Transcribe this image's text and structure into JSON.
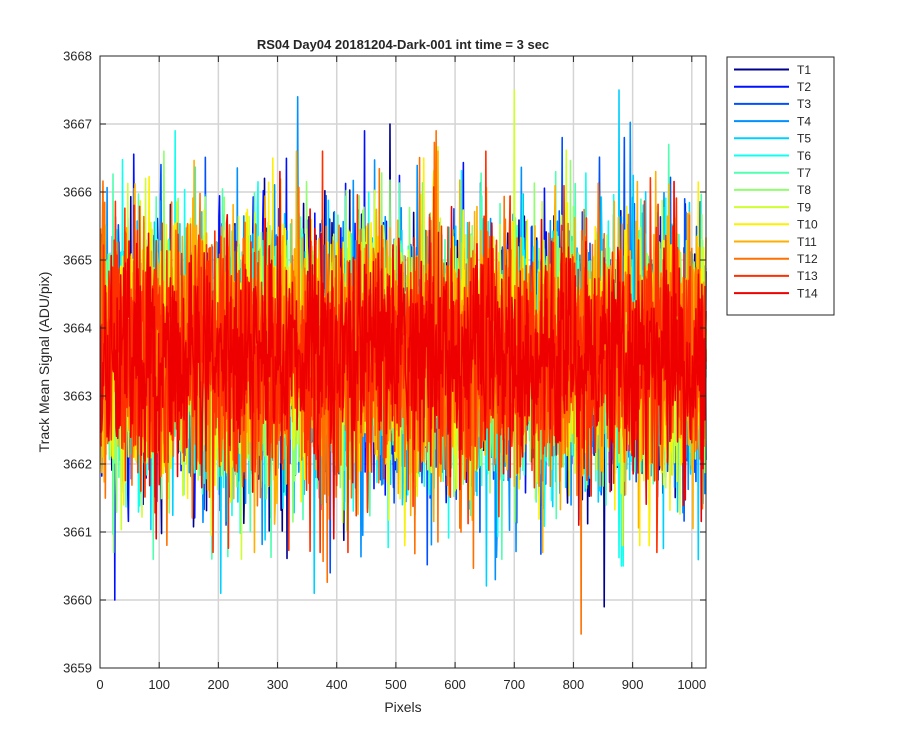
{
  "chart_data": {
    "type": "line",
    "title": "RS04 Day04 20181204-Dark-001 int time = 3 sec",
    "xlabel": "Pixels",
    "ylabel": "Track Mean Signal (ADU/pix)",
    "xlim": [
      0,
      1024
    ],
    "ylim": [
      3659,
      3668
    ],
    "xticks": [
      "0",
      "100",
      "200",
      "300",
      "400",
      "500",
      "600",
      "700",
      "800",
      "900",
      "1000"
    ],
    "yticks": [
      "3659",
      "3660",
      "3661",
      "3662",
      "3663",
      "3664",
      "3665",
      "3666",
      "3667",
      "3668"
    ],
    "grid": true,
    "legend_position": "outside-right-top",
    "series": [
      {
        "name": "T1",
        "color": "#00008f",
        "mean": 3663.6,
        "sd": 0.95,
        "min": 3659.9,
        "max": 3667.0
      },
      {
        "name": "T2",
        "color": "#0010ff",
        "mean": 3663.6,
        "sd": 0.95,
        "min": 3660.0,
        "max": 3666.9
      },
      {
        "name": "T3",
        "color": "#0050ff",
        "mean": 3663.6,
        "sd": 0.95,
        "min": 3660.4,
        "max": 3666.8
      },
      {
        "name": "T4",
        "color": "#0090ff",
        "mean": 3663.6,
        "sd": 0.95,
        "min": 3660.3,
        "max": 3667.4
      },
      {
        "name": "T5",
        "color": "#00d0ff",
        "mean": 3663.6,
        "sd": 0.95,
        "min": 3660.1,
        "max": 3667.5
      },
      {
        "name": "T6",
        "color": "#10ffef",
        "mean": 3663.6,
        "sd": 0.95,
        "min": 3660.5,
        "max": 3666.9
      },
      {
        "name": "T7",
        "color": "#50ffaf",
        "mean": 3663.6,
        "sd": 0.95,
        "min": 3660.6,
        "max": 3666.7
      },
      {
        "name": "T8",
        "color": "#90ff6f",
        "mean": 3663.6,
        "sd": 0.95,
        "min": 3660.7,
        "max": 3666.6
      },
      {
        "name": "T9",
        "color": "#cfff30",
        "mean": 3663.6,
        "sd": 0.95,
        "min": 3660.6,
        "max": 3667.5
      },
      {
        "name": "T10",
        "color": "#ffef00",
        "mean": 3663.6,
        "sd": 0.95,
        "min": 3660.8,
        "max": 3666.5
      },
      {
        "name": "T11",
        "color": "#ffaf00",
        "mean": 3663.6,
        "sd": 0.95,
        "min": 3660.7,
        "max": 3666.6
      },
      {
        "name": "T12",
        "color": "#ff7000",
        "mean": 3663.6,
        "sd": 0.95,
        "min": 3659.5,
        "max": 3666.9
      },
      {
        "name": "T13",
        "color": "#ff3000",
        "mean": 3663.6,
        "sd": 0.95,
        "min": 3660.7,
        "max": 3666.6
      },
      {
        "name": "T14",
        "color": "#ef0000",
        "mean": 3663.6,
        "sd": 0.8,
        "min": 3660.9,
        "max": 3666.3
      }
    ]
  }
}
